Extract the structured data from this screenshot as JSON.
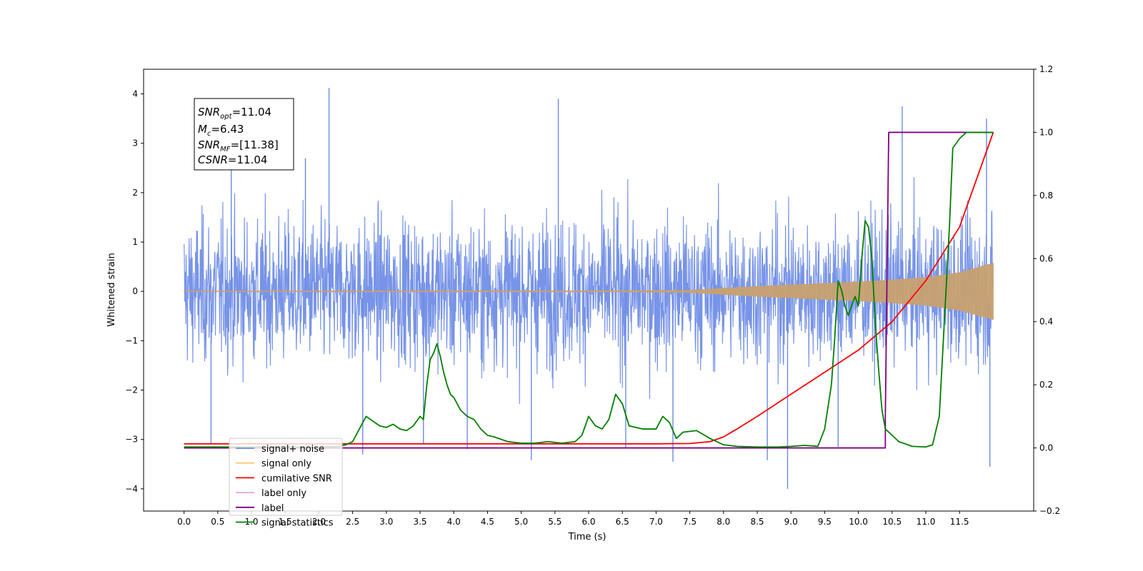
{
  "chart_data": {
    "type": "line",
    "xlabel": "Time (s)",
    "ylabel": "Whitened strain",
    "xlim": [
      -0.6,
      12.6
    ],
    "ylim": [
      -4.45,
      4.5
    ],
    "y2lim": [
      -0.2,
      1.2
    ],
    "x_ticks": [
      "0.0",
      "0.5",
      "1.0",
      "1.5",
      "2.0",
      "2.5",
      "3.0",
      "3.5",
      "4.0",
      "4.5",
      "5.0",
      "5.5",
      "6.0",
      "6.5",
      "7.0",
      "7.5",
      "8.0",
      "8.5",
      "9.0",
      "9.5",
      "10.0",
      "10.5",
      "11.0",
      "11.5"
    ],
    "y_ticks": [
      "−4",
      "−3",
      "−2",
      "−1",
      "0",
      "1",
      "2",
      "3",
      "4"
    ],
    "y2_ticks": [
      "−0.2",
      "0.0",
      "0.2",
      "0.4",
      "0.6",
      "0.8",
      "1.0",
      "1.2"
    ],
    "annotation": {
      "snr_opt": {
        "base": "SNR",
        "sub": "opt",
        "value": "=11.04"
      },
      "mc": {
        "base": "M",
        "sub": "c",
        "value": "=6.43"
      },
      "snr_mf": {
        "base": "SNR",
        "sub": "MF",
        "value": "=[11.38]"
      },
      "csnr": {
        "base": "CSNR",
        "sub": "",
        "value": "=11.04"
      }
    },
    "legend": {
      "placement": "lower-left",
      "entries": [
        {
          "label": "signal+ noise",
          "color": "#6c8be6"
        },
        {
          "label": "signal only",
          "color": "#ffc870"
        },
        {
          "label": "cumilative SNR",
          "color": "#ff0000"
        },
        {
          "label": "label only",
          "color": "#e8a0e8"
        },
        {
          "label": "label",
          "color": "#800080"
        },
        {
          "label": "signal statistics",
          "color": "#008000"
        }
      ]
    },
    "series": [
      {
        "name": "signal+ noise",
        "axis": "left",
        "color": "#6c8be6",
        "description_kind": "noise",
        "x_range": [
          0,
          12
        ],
        "base_amplitude": 1.6,
        "spikes": [
          [
            2.15,
            4.12
          ],
          [
            5.55,
            3.9
          ],
          [
            10.65,
            3.75
          ],
          [
            11.9,
            3.5
          ],
          [
            0.7,
            2.6
          ],
          [
            1.8,
            2.7
          ],
          [
            8.95,
            -4.0
          ],
          [
            11.95,
            -3.55
          ],
          [
            7.25,
            -3.45
          ],
          [
            5.15,
            -3.42
          ],
          [
            8.65,
            -3.42
          ],
          [
            0.4,
            -3.1
          ],
          [
            2.65,
            -3.3
          ],
          [
            4.2,
            -3.2
          ],
          [
            6.55,
            -3.18
          ],
          [
            9.7,
            -3.15
          ],
          [
            3.55,
            -3.1
          ]
        ]
      },
      {
        "name": "signal only",
        "axis": "left",
        "color": "#c8a070",
        "description_kind": "chirp-envelope",
        "envelope_x": [
          0,
          6.5,
          7.5,
          8.0,
          8.5,
          9.0,
          9.5,
          10.0,
          10.5,
          11.0,
          11.5,
          12.0
        ],
        "envelope_y": [
          0.005,
          0.01,
          0.02,
          0.06,
          0.1,
          0.13,
          0.16,
          0.19,
          0.23,
          0.28,
          0.38,
          0.57
        ]
      },
      {
        "name": "cumilative SNR",
        "axis": "right",
        "color": "#ff0000",
        "x": [
          0,
          7.0,
          7.5,
          7.8,
          8.0,
          8.2,
          8.5,
          9.0,
          9.5,
          10.0,
          10.5,
          11.0,
          11.5,
          12.0
        ],
        "y": [
          0.013,
          0.013,
          0.014,
          0.02,
          0.035,
          0.06,
          0.1,
          0.17,
          0.24,
          0.31,
          0.4,
          0.53,
          0.7,
          1.0
        ]
      },
      {
        "name": "label",
        "axis": "right",
        "color": "#800080",
        "x": [
          0,
          10.4,
          10.4,
          10.45,
          12.0
        ],
        "y": [
          0.0,
          0.0,
          0.1,
          1.0,
          1.0
        ]
      },
      {
        "name": "signal statistics",
        "axis": "right",
        "color": "#008000",
        "x": [
          0,
          0.5,
          1.0,
          1.5,
          2.0,
          2.3,
          2.4,
          2.5,
          2.6,
          2.7,
          2.8,
          2.9,
          3.0,
          3.1,
          3.2,
          3.3,
          3.4,
          3.5,
          3.55,
          3.6,
          3.65,
          3.7,
          3.75,
          3.8,
          3.85,
          3.9,
          3.95,
          4.0,
          4.1,
          4.2,
          4.3,
          4.4,
          4.5,
          4.6,
          4.8,
          5.0,
          5.2,
          5.4,
          5.6,
          5.8,
          5.9,
          6.0,
          6.1,
          6.2,
          6.3,
          6.4,
          6.5,
          6.6,
          6.8,
          7.0,
          7.1,
          7.2,
          7.3,
          7.4,
          7.6,
          7.8,
          8.0,
          8.2,
          8.5,
          8.8,
          9.0,
          9.2,
          9.4,
          9.5,
          9.6,
          9.65,
          9.7,
          9.75,
          9.8,
          9.85,
          9.9,
          9.95,
          10.0,
          10.05,
          10.1,
          10.15,
          10.2,
          10.25,
          10.3,
          10.35,
          10.4,
          10.45,
          10.5,
          10.6,
          10.8,
          11.0,
          11.1,
          11.2,
          11.25,
          11.3,
          11.35,
          11.4,
          11.5,
          11.6,
          11.8,
          12.0
        ],
        "y": [
          0.003,
          0.003,
          0.003,
          0.003,
          0.003,
          0.005,
          0.01,
          0.02,
          0.06,
          0.1,
          0.085,
          0.07,
          0.065,
          0.075,
          0.06,
          0.055,
          0.07,
          0.1,
          0.09,
          0.2,
          0.28,
          0.3,
          0.33,
          0.29,
          0.24,
          0.2,
          0.17,
          0.16,
          0.12,
          0.1,
          0.09,
          0.06,
          0.04,
          0.035,
          0.02,
          0.015,
          0.015,
          0.02,
          0.015,
          0.02,
          0.04,
          0.1,
          0.07,
          0.06,
          0.09,
          0.17,
          0.14,
          0.07,
          0.06,
          0.06,
          0.1,
          0.08,
          0.03,
          0.05,
          0.055,
          0.03,
          0.01,
          0.005,
          0.003,
          0.003,
          0.005,
          0.008,
          0.005,
          0.06,
          0.2,
          0.35,
          0.53,
          0.5,
          0.45,
          0.42,
          0.45,
          0.48,
          0.45,
          0.6,
          0.72,
          0.7,
          0.6,
          0.4,
          0.25,
          0.12,
          0.06,
          0.05,
          0.04,
          0.02,
          0.005,
          0.003,
          0.01,
          0.1,
          0.3,
          0.5,
          0.7,
          0.95,
          0.98,
          1.0,
          1.0,
          1.0
        ]
      }
    ]
  }
}
